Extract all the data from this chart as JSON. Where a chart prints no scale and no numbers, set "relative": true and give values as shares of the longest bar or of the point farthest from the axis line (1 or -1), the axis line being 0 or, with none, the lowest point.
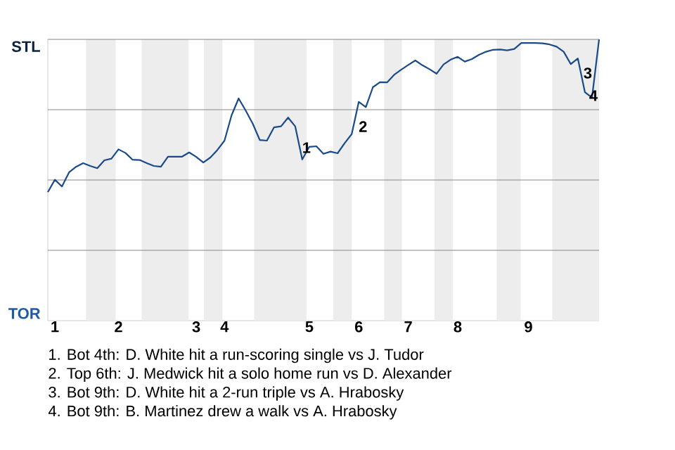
{
  "chart_data": {
    "type": "line",
    "relative": true,
    "categories": [
      null,
      "1",
      null,
      null,
      null,
      null,
      null,
      null,
      null,
      null,
      "2",
      null,
      null,
      null,
      null,
      null,
      null,
      null,
      null,
      null,
      null,
      "3",
      null,
      null,
      null,
      "4",
      null,
      null,
      null,
      null,
      null,
      null,
      null,
      null,
      null,
      null,
      null,
      "5",
      null,
      null,
      null,
      null,
      null,
      null,
      "6",
      null,
      null,
      null,
      null,
      null,
      null,
      "7",
      null,
      null,
      null,
      null,
      null,
      null,
      "8",
      null,
      null,
      null,
      null,
      null,
      null,
      null,
      null,
      null,
      "9",
      null,
      null,
      null,
      null,
      null,
      null,
      null,
      null,
      null,
      null
    ],
    "series": [
      {
        "color": "#1a4a8a",
        "values": [
          0.457,
          0.501,
          0.477,
          0.527,
          0.547,
          0.56,
          0.55,
          0.542,
          0.57,
          0.576,
          0.609,
          0.596,
          0.572,
          0.571,
          0.56,
          0.55,
          0.547,
          0.583,
          0.583,
          0.583,
          0.598,
          0.582,
          0.562,
          0.58,
          0.607,
          0.64,
          0.73,
          0.79,
          0.747,
          0.7,
          0.642,
          0.64,
          0.687,
          0.691,
          0.722,
          0.691,
          0.573,
          0.618,
          0.62,
          0.593,
          0.601,
          0.595,
          0.631,
          0.663,
          0.778,
          0.759,
          0.83,
          0.848,
          0.847,
          0.874,
          0.892,
          0.909,
          0.925,
          0.908,
          0.894,
          0.878,
          0.911,
          0.928,
          0.938,
          0.921,
          0.93,
          0.945,
          0.956,
          0.963,
          0.964,
          0.961,
          0.966,
          0.987,
          0.987,
          0.987,
          0.986,
          0.982,
          0.974,
          0.956,
          0.912,
          0.932,
          0.812,
          0.793,
          1
        ]
      }
    ],
    "ref_lines": [
      {
        "axis": "y",
        "value": 0.25,
        "color": "#888888"
      },
      {
        "axis": "y",
        "value": 0.5,
        "color": "#888888"
      },
      {
        "axis": "y",
        "value": 0.75,
        "color": "#888888"
      },
      {
        "axis": "y",
        "value": 1,
        "color": "#888888"
      }
    ],
    "annotations": [
      {
        "text": "1",
        "y": 0.615
      },
      {
        "text": "3",
        "y": 0.88
      },
      {
        "text": "4",
        "y": 0.8
      },
      "STL",
      "TOR",
      "2",
      "1. Bot 4th: D. White hit a run-scoring single vs J. Tudor",
      "2. Top 6th: J. Medwick hit a solo home run vs D. Alexander",
      "3. Bot 9th: D. White hit a 2-run triple vs A. Hrabosky",
      "4. Bot 9th: B. Martinez drew a walk vs A. Hrabosky"
    ]
  }
}
